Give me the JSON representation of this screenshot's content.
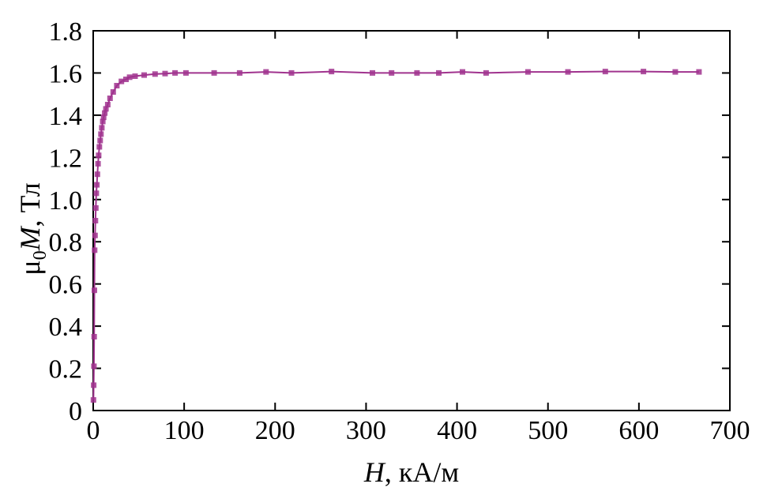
{
  "chart_data": {
    "type": "scatter",
    "title": "",
    "xlabel": {
      "symbol": "H",
      "unit": ", кА/м"
    },
    "ylabel": {
      "symbol": "μ",
      "subscript": "0",
      "symbol2": "M",
      "unit": ", Тл"
    },
    "xlim": [
      0,
      700
    ],
    "ylim": [
      0,
      1.8
    ],
    "xticks": [
      0,
      100,
      200,
      300,
      400,
      500,
      600,
      700
    ],
    "yticks": [
      0,
      0.2,
      0.4,
      0.6,
      0.8,
      1.0,
      1.2,
      1.4,
      1.6,
      1.8
    ],
    "ytick_labels": [
      "0",
      "0.2",
      "0.4",
      "0.6",
      "0.8",
      "1.0",
      "1.2",
      "1.4",
      "1.6",
      "1.8"
    ],
    "grid": false,
    "legend": "none",
    "color": "#a0338e",
    "series": [
      {
        "x": [
          0.3,
          0.5,
          0.8,
          1.0,
          1.3,
          1.6,
          2.0,
          2.4,
          2.9,
          3.4,
          4.0,
          4.6,
          5.3,
          6.0,
          6.8,
          7.6,
          8.5,
          9.5,
          10.5,
          11.5,
          12.7,
          14.0,
          16.0,
          18.5,
          22.0,
          26.0,
          31.0,
          36.0,
          40.0,
          46.0,
          56.0,
          68.0,
          79.0,
          90.0,
          102.0,
          133.0,
          161.0,
          190.0,
          218.0,
          262.0,
          307.0,
          328.0,
          356.0,
          380.0,
          406.0,
          432.0,
          478.0,
          522.0,
          563.0,
          605.0,
          640.0,
          666.0
        ],
        "y": [
          0.05,
          0.12,
          0.21,
          0.35,
          0.57,
          0.76,
          0.83,
          0.9,
          0.96,
          1.03,
          1.07,
          1.12,
          1.17,
          1.21,
          1.25,
          1.28,
          1.31,
          1.34,
          1.37,
          1.39,
          1.41,
          1.43,
          1.45,
          1.48,
          1.51,
          1.54,
          1.56,
          1.57,
          1.58,
          1.585,
          1.59,
          1.595,
          1.597,
          1.6,
          1.6,
          1.6,
          1.6,
          1.605,
          1.6,
          1.607,
          1.6,
          1.6,
          1.6,
          1.6,
          1.605,
          1.6,
          1.605,
          1.605,
          1.607,
          1.607,
          1.605,
          1.605
        ]
      }
    ]
  }
}
